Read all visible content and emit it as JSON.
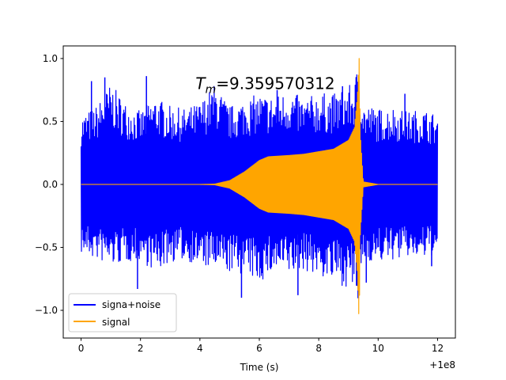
{
  "chart_data": {
    "type": "line",
    "title": "",
    "xlabel": "Time (s)",
    "ylabel": "",
    "x_offset_label": "+1e8",
    "xlim": [
      -0.6,
      12.6
    ],
    "ylim": [
      -1.22,
      1.1
    ],
    "x_ticks": [
      0,
      2,
      4,
      6,
      8,
      10,
      12
    ],
    "x_tick_labels": [
      "0",
      "2",
      "4",
      "6",
      "8",
      "10",
      "12"
    ],
    "y_ticks": [
      -1.0,
      -0.5,
      0.0,
      0.5,
      1.0
    ],
    "y_tick_labels": [
      "−1.0",
      "−0.5",
      "0.0",
      "0.5",
      "1.0"
    ],
    "grid": false,
    "legend_position": "lower-left",
    "annotation": {
      "symbol": "T",
      "subscript": "m",
      "value_text": "=9.359570312",
      "x": 6.2,
      "y": 0.8
    },
    "series": [
      {
        "name": "signa+noise",
        "color": "#0000ff",
        "envelope_x": [
          0,
          0.5,
          1,
          1.5,
          2,
          2.5,
          3,
          3.5,
          4,
          4.5,
          5,
          5.5,
          6,
          6.5,
          7,
          7.5,
          8,
          8.5,
          9,
          9.2,
          9.35,
          9.5,
          10,
          10.5,
          11,
          11.5,
          12
        ],
        "envelope_upper": [
          0.55,
          0.62,
          0.8,
          0.65,
          0.58,
          0.7,
          0.62,
          0.6,
          0.65,
          0.8,
          0.62,
          0.68,
          0.72,
          0.7,
          0.75,
          0.68,
          0.73,
          0.72,
          0.78,
          0.82,
          1.0,
          0.65,
          0.6,
          0.62,
          0.58,
          0.6,
          0.55
        ],
        "envelope_lower": [
          -0.55,
          -0.6,
          -0.65,
          -0.62,
          -0.6,
          -0.7,
          -0.62,
          -0.6,
          -0.65,
          -0.68,
          -0.7,
          -0.72,
          -0.78,
          -0.7,
          -0.72,
          -0.68,
          -0.73,
          -0.78,
          -0.82,
          -0.85,
          -1.0,
          -0.6,
          -0.62,
          -0.6,
          -0.58,
          -0.6,
          -0.55
        ],
        "spike_x": [
          0.35,
          0.8,
          1.9,
          2.2,
          5.4,
          6.6,
          7.3,
          8.8,
          9.6,
          10.9,
          11.8
        ],
        "spike_y": [
          0.82,
          0.85,
          -0.83,
          0.86,
          -0.9,
          0.75,
          -0.88,
          0.78,
          -0.78,
          0.72,
          -0.65
        ]
      },
      {
        "name": "signal",
        "color": "#ffa500",
        "envelope_x": [
          0,
          1,
          2,
          3,
          4,
          4.5,
          5,
          5.5,
          6,
          6.3,
          7,
          7.5,
          8,
          8.5,
          9,
          9.2,
          9.3,
          9.36,
          9.4,
          9.5,
          10,
          11,
          12
        ],
        "envelope_upper": [
          0,
          0,
          0,
          0,
          0,
          0.003,
          0.03,
          0.1,
          0.19,
          0.22,
          0.23,
          0.24,
          0.26,
          0.28,
          0.35,
          0.45,
          0.7,
          1.0,
          0.4,
          0.02,
          0,
          0,
          0
        ],
        "envelope_lower": [
          0,
          0,
          0,
          0,
          0,
          -0.003,
          -0.03,
          -0.1,
          -0.19,
          -0.22,
          -0.23,
          -0.24,
          -0.26,
          -0.28,
          -0.35,
          -0.45,
          -0.7,
          -1.12,
          -0.4,
          -0.02,
          0,
          0,
          0
        ]
      }
    ]
  }
}
